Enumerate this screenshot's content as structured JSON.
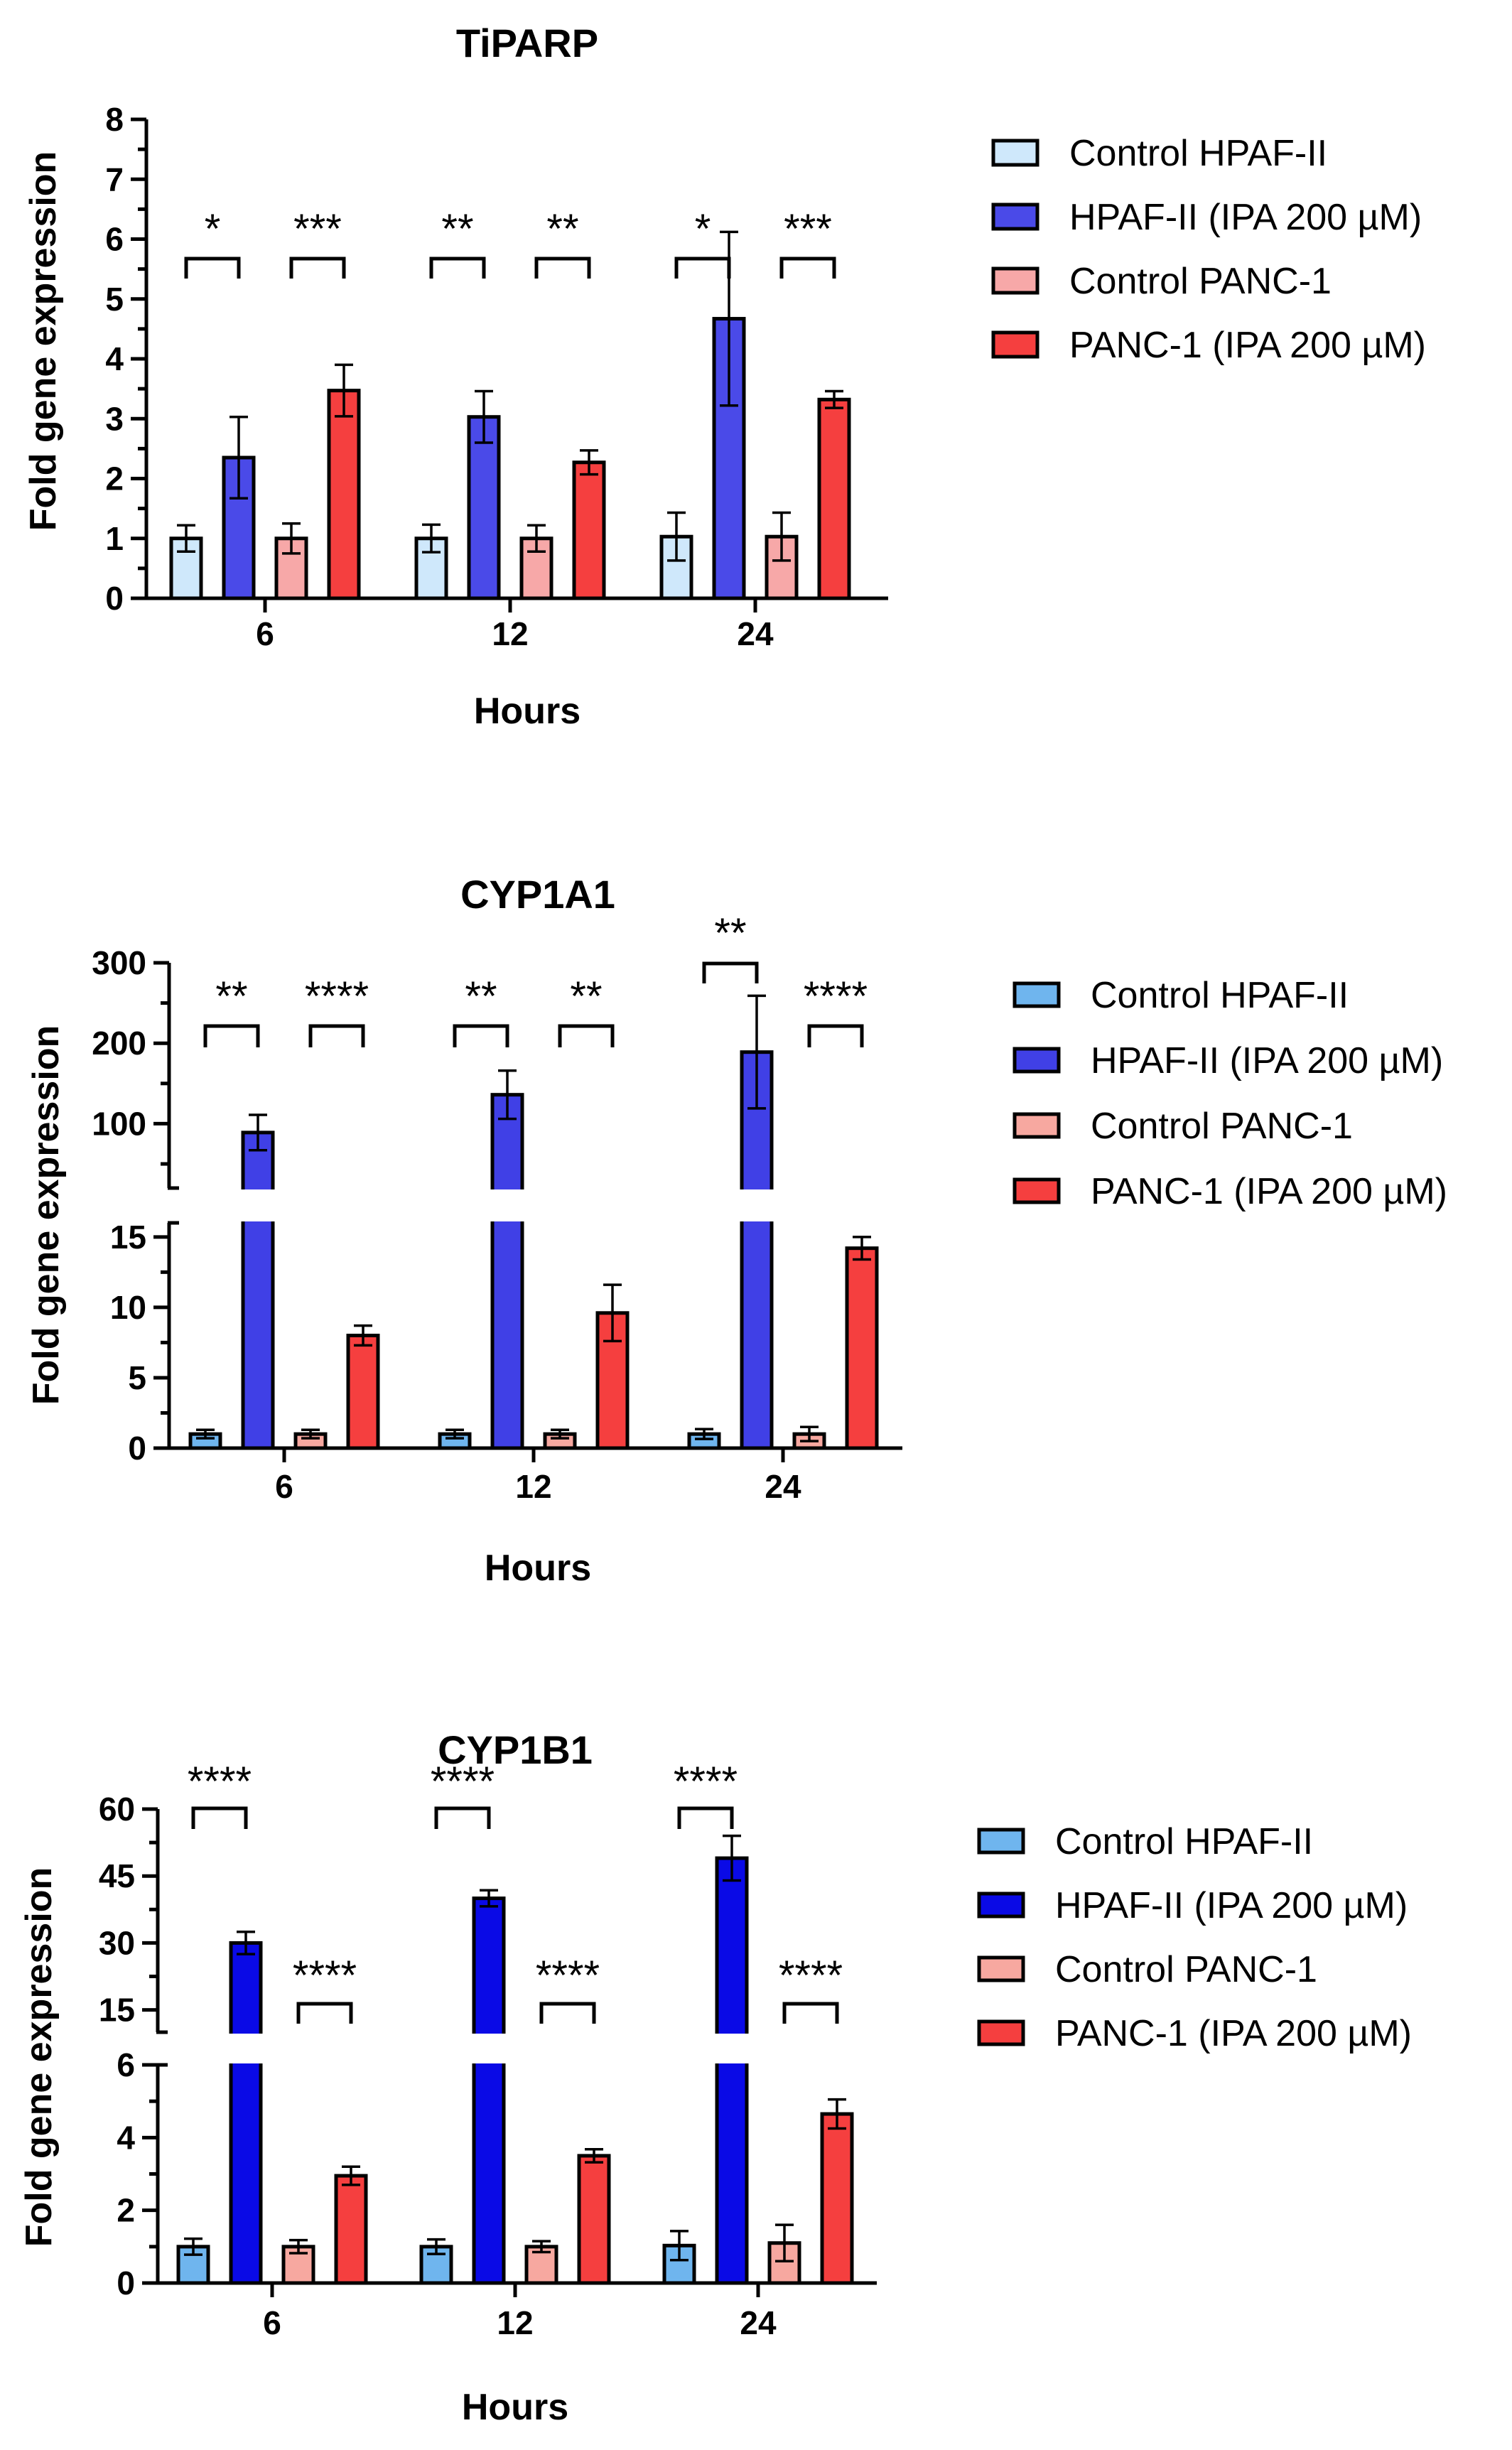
{
  "chart_data": [
    {
      "type": "bar",
      "title": "TiPARP",
      "xlabel": "Hours",
      "ylabel": "Fold gene expression",
      "categories": [
        "6",
        "12",
        "24"
      ],
      "ylim": [
        0,
        8
      ],
      "yticks": [
        "0",
        "1",
        "2",
        "3",
        "4",
        "5",
        "6",
        "7",
        "8"
      ],
      "legend_position": "right",
      "series": [
        {
          "name": "Control HPAF-II",
          "color": "#cfe8fb",
          "values": [
            1.0,
            1.0,
            1.03
          ],
          "errors": [
            0.22,
            0.23,
            0.4
          ]
        },
        {
          "name": "HPAF-II (IPA 200 µM)",
          "color": "#4a4ae8",
          "values": [
            2.35,
            3.03,
            4.67
          ],
          "errors": [
            0.68,
            0.43,
            1.45
          ]
        },
        {
          "name": "Control PANC-1",
          "color": "#f7a8a8",
          "values": [
            1.0,
            1.0,
            1.03
          ],
          "errors": [
            0.25,
            0.22,
            0.4
          ]
        },
        {
          "name": "PANC-1 (IPA 200 µM)",
          "color": "#f53f3f",
          "values": [
            3.47,
            2.27,
            3.32
          ],
          "errors": [
            0.43,
            0.2,
            0.14
          ]
        }
      ],
      "annotations": [
        {
          "group": "6",
          "pair": "HPAF-II",
          "text": "*"
        },
        {
          "group": "6",
          "pair": "PANC-1",
          "text": "***"
        },
        {
          "group": "12",
          "pair": "HPAF-II",
          "text": "**"
        },
        {
          "group": "12",
          "pair": "PANC-1",
          "text": "**"
        },
        {
          "group": "24",
          "pair": "HPAF-II",
          "text": "*"
        },
        {
          "group": "24",
          "pair": "PANC-1",
          "text": "***"
        }
      ]
    },
    {
      "type": "bar",
      "title": "CYP1A1",
      "xlabel": "Hours",
      "ylabel": "Fold gene expression",
      "categories": [
        "6",
        "12",
        "24"
      ],
      "axis_break": true,
      "ylim_lower": [
        0,
        16
      ],
      "ylim_upper": [
        20,
        300
      ],
      "yticks_lower": [
        "0",
        "5",
        "10",
        "15"
      ],
      "yticks_upper": [
        "100",
        "200",
        "300"
      ],
      "legend_position": "right",
      "series": [
        {
          "name": "Control HPAF-II",
          "color": "#6fb5ee",
          "values": [
            1.0,
            1.0,
            1.0
          ],
          "errors": [
            0.3,
            0.3,
            0.35
          ]
        },
        {
          "name": "HPAF-II (IPA 200 µM)",
          "color": "#4040e6",
          "values": [
            89,
            136,
            189
          ],
          "errors": [
            22,
            30,
            70
          ]
        },
        {
          "name": "Control PANC-1",
          "color": "#f7a8a0",
          "values": [
            1.0,
            1.0,
            1.0
          ],
          "errors": [
            0.3,
            0.3,
            0.5
          ]
        },
        {
          "name": "PANC-1 (IPA 200 µM)",
          "color": "#f53f3f",
          "values": [
            8.0,
            9.6,
            14.2
          ],
          "errors": [
            0.7,
            2.0,
            0.8
          ]
        }
      ],
      "annotations": [
        {
          "group": "6",
          "pair": "HPAF-II",
          "text": "**"
        },
        {
          "group": "6",
          "pair": "PANC-1",
          "text": "****"
        },
        {
          "group": "12",
          "pair": "HPAF-II",
          "text": "**"
        },
        {
          "group": "12",
          "pair": "PANC-1",
          "text": "**"
        },
        {
          "group": "24",
          "pair": "HPAF-II",
          "text": "**"
        },
        {
          "group": "24",
          "pair": "PANC-1",
          "text": "****"
        }
      ]
    },
    {
      "type": "bar",
      "title": "CYP1B1",
      "xlabel": "Hours",
      "ylabel": "Fold gene expression",
      "categories": [
        "6",
        "12",
        "24"
      ],
      "axis_break": true,
      "ylim_lower": [
        0,
        6
      ],
      "ylim_upper": [
        10,
        60
      ],
      "yticks_lower": [
        "0",
        "2",
        "4",
        "6"
      ],
      "yticks_upper": [
        "15",
        "30",
        "45",
        "60"
      ],
      "legend_position": "right",
      "series": [
        {
          "name": "Control HPAF-II",
          "color": "#6fb5ee",
          "values": [
            1.0,
            1.0,
            1.03
          ],
          "errors": [
            0.22,
            0.2,
            0.4
          ]
        },
        {
          "name": "HPAF-II (IPA 200 µM)",
          "color": "#0a0ae6",
          "values": [
            30,
            40,
            49
          ],
          "errors": [
            2.5,
            1.8,
            5.0
          ]
        },
        {
          "name": "Control PANC-1",
          "color": "#f7a8a0",
          "values": [
            1.0,
            1.0,
            1.1
          ],
          "errors": [
            0.18,
            0.15,
            0.5
          ]
        },
        {
          "name": "PANC-1 (IPA 200 µM)",
          "color": "#f53f3f",
          "values": [
            2.95,
            3.5,
            4.65
          ],
          "errors": [
            0.25,
            0.18,
            0.4
          ]
        }
      ],
      "annotations": [
        {
          "group": "6",
          "pair": "HPAF-II",
          "text": "****"
        },
        {
          "group": "6",
          "pair": "PANC-1",
          "text": "****"
        },
        {
          "group": "12",
          "pair": "HPAF-II",
          "text": "****"
        },
        {
          "group": "12",
          "pair": "PANC-1",
          "text": "****"
        },
        {
          "group": "24",
          "pair": "HPAF-II",
          "text": "****"
        },
        {
          "group": "24",
          "pair": "PANC-1",
          "text": "****"
        }
      ]
    }
  ]
}
